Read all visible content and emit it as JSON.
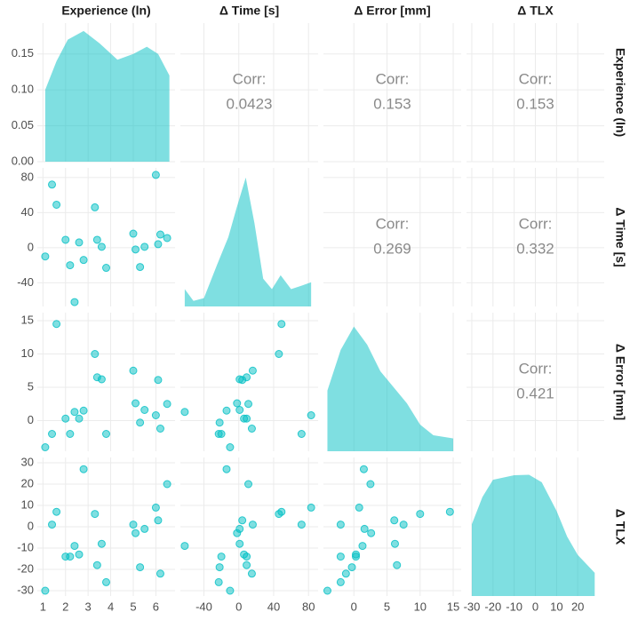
{
  "chart_data": {
    "type": "scatter-matrix",
    "color": "#00BFC4",
    "corr_label": "Corr:",
    "correlations": [
      [
        null,
        0.0423,
        0.153,
        0.153
      ],
      [
        null,
        null,
        0.269,
        0.332
      ],
      [
        null,
        null,
        null,
        0.421
      ]
    ],
    "variables": [
      {
        "name": "Experience (ln)",
        "lim": [
          0.75,
          6.85
        ],
        "xticks": [
          1,
          2,
          3,
          4,
          5,
          6
        ],
        "yticks": [],
        "values": [
          1.1,
          1.4,
          1.6,
          2.0,
          2.2,
          2.4,
          2.6,
          2.8,
          3.3,
          3.4,
          3.6,
          3.8,
          5.0,
          5.1,
          5.3,
          5.5,
          6.0,
          6.1,
          6.2,
          6.5
        ],
        "density": {
          "x": [
            1.1,
            1.6,
            2.1,
            2.8,
            3.5,
            4.3,
            5.0,
            5.6,
            6.1,
            6.6
          ],
          "y": [
            0.1,
            0.14,
            0.17,
            0.182,
            0.165,
            0.142,
            0.15,
            0.16,
            0.15,
            0.12
          ],
          "ylim": [
            0,
            0.193
          ],
          "yticks": [
            {
              "value": 0,
              "label": "0.00"
            },
            0.05,
            {
              "value": 0.1,
              "label": "0.10"
            },
            0.15
          ]
        }
      },
      {
        "name": "Δ Time [s]",
        "lim": [
          -67,
          91
        ],
        "xticks": [
          -40,
          0,
          40,
          80
        ],
        "yticks": [
          -40,
          0,
          40,
          80
        ],
        "values": [
          -10,
          72,
          49,
          9,
          -20,
          -62,
          6,
          -14,
          46,
          9,
          1,
          -23,
          16,
          -2,
          -22,
          1,
          83,
          4,
          15,
          11
        ],
        "density": {
          "x": [
            -62,
            -52,
            -40,
            -25,
            -12,
            -3,
            8,
            18,
            28,
            38,
            48,
            60,
            72,
            83
          ],
          "y": [
            0.0025,
            0.0008,
            0.0012,
            0.006,
            0.01,
            0.014,
            0.0186,
            0.012,
            0.004,
            0.0025,
            0.0045,
            0.0025,
            0.003,
            0.0035
          ],
          "ylim": [
            0,
            0.02
          ],
          "yticks": []
        }
      },
      {
        "name": "Δ Error [mm]",
        "lim": [
          -4.6,
          16.2
        ],
        "xticks": [
          0,
          5,
          10,
          15
        ],
        "yticks": [
          0,
          5,
          10,
          15
        ],
        "values": [
          -4,
          -2,
          14.5,
          0.3,
          -2,
          1.3,
          0.3,
          1.5,
          10,
          6.5,
          6.2,
          -2,
          7.5,
          2.6,
          -0.3,
          1.6,
          0.8,
          6.1,
          -1.2,
          2.5
        ],
        "density": {
          "x": [
            -4,
            -2,
            0,
            2,
            4,
            6,
            8,
            10,
            12,
            15
          ],
          "y": [
            0.057,
            0.095,
            0.117,
            0.1,
            0.075,
            0.06,
            0.045,
            0.025,
            0.015,
            0.012
          ],
          "ylim": [
            0,
            0.13
          ],
          "yticks": []
        }
      },
      {
        "name": "Δ TLX",
        "lim": [
          -32.5,
          32.5
        ],
        "xticks": [
          -30,
          -20,
          -10,
          0,
          10,
          20
        ],
        "yticks": [
          -30,
          -20,
          -10,
          0,
          10,
          20,
          30
        ],
        "values": [
          -30,
          1,
          7,
          -14,
          -14,
          -9,
          -13,
          27,
          6,
          -18,
          -8,
          -26,
          1,
          -3,
          -19,
          -1,
          9,
          3,
          -22,
          20
        ],
        "density": {
          "x": [
            -30,
            -25,
            -20,
            -10,
            -3,
            3,
            10,
            15,
            20,
            28
          ],
          "y": [
            0.0145,
            0.02,
            0.0235,
            0.0244,
            0.0245,
            0.023,
            0.0172,
            0.012,
            0.0083,
            0.0047
          ],
          "ylim": [
            0,
            0.028
          ],
          "yticks": []
        }
      }
    ]
  }
}
